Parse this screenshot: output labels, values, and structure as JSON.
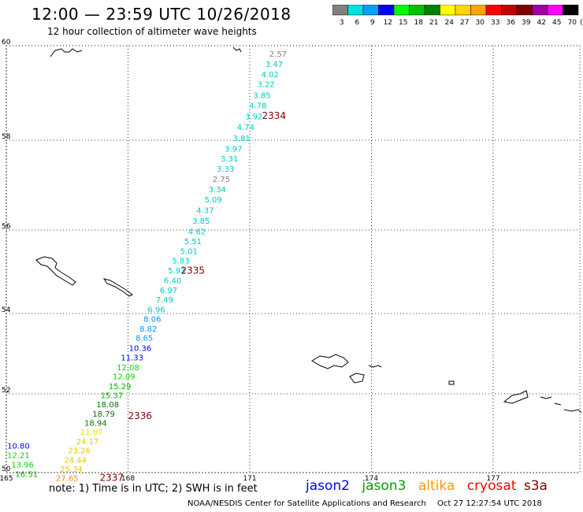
{
  "header": {
    "title": "12:00 — 23:59 UTC 10/26/2018",
    "subtitle": "12 hour collection of altimeter wave heights"
  },
  "color_scale": {
    "unit": "(ft)",
    "bins": [
      {
        "label": "3",
        "color": "#808080"
      },
      {
        "label": "6",
        "color": "#00e0e0"
      },
      {
        "label": "9",
        "color": "#00a0ff"
      },
      {
        "label": "12",
        "color": "#0000ff"
      },
      {
        "label": "15",
        "color": "#00ff00"
      },
      {
        "label": "18",
        "color": "#00c000"
      },
      {
        "label": "21",
        "color": "#008000"
      },
      {
        "label": "24",
        "color": "#ffff00"
      },
      {
        "label": "27",
        "color": "#ffd700"
      },
      {
        "label": "30",
        "color": "#ffa500"
      },
      {
        "label": "33",
        "color": "#ff0000"
      },
      {
        "label": "36",
        "color": "#c00000"
      },
      {
        "label": "39",
        "color": "#800000"
      },
      {
        "label": "42",
        "color": "#a000a0"
      },
      {
        "label": "45",
        "color": "#ff00ff"
      },
      {
        "label": "70",
        "color": "#000000"
      }
    ]
  },
  "map": {
    "lon_range": [
      165,
      179.7
    ],
    "lat_range": [
      50,
      60
    ],
    "lon_ticks": [
      165,
      168,
      171,
      174,
      177
    ],
    "lat_ticks": [
      60,
      58,
      56,
      54,
      52,
      50
    ],
    "track": [
      {
        "lon": 171.7,
        "lat": 59.83,
        "swh": "2.57",
        "color": "#808080"
      },
      {
        "lon": 171.6,
        "lat": 59.62,
        "swh": "3.47",
        "color": "#00c8c8"
      },
      {
        "lon": 171.5,
        "lat": 59.4,
        "swh": "4.02",
        "color": "#00c8c8"
      },
      {
        "lon": 171.4,
        "lat": 59.19,
        "swh": "3.22",
        "color": "#00c8c8"
      },
      {
        "lon": 171.3,
        "lat": 58.96,
        "swh": "3.85",
        "color": "#00c8c8"
      },
      {
        "lon": 171.2,
        "lat": 58.74,
        "swh": "4.78",
        "color": "#00c8c8"
      },
      {
        "lon": 171.1,
        "lat": 58.51,
        "swh": "3.92",
        "color": "#00c8c8"
      },
      {
        "lon": 170.9,
        "lat": 58.28,
        "swh": "4.74",
        "color": "#00c8c8"
      },
      {
        "lon": 170.8,
        "lat": 58.05,
        "swh": "3.81",
        "color": "#00c8c8"
      },
      {
        "lon": 170.6,
        "lat": 57.82,
        "swh": "3.97",
        "color": "#00c8c8"
      },
      {
        "lon": 170.5,
        "lat": 57.6,
        "swh": "3.31",
        "color": "#00c8c8"
      },
      {
        "lon": 170.4,
        "lat": 57.37,
        "swh": "3.33",
        "color": "#00c8c8"
      },
      {
        "lon": 170.3,
        "lat": 57.14,
        "swh": "2.75",
        "color": "#808080"
      },
      {
        "lon": 170.2,
        "lat": 56.91,
        "swh": "3.34",
        "color": "#00c8c8"
      },
      {
        "lon": 170.1,
        "lat": 56.68,
        "swh": "5.09",
        "color": "#00c8c8"
      },
      {
        "lon": 169.9,
        "lat": 56.45,
        "swh": "4.37",
        "color": "#00c8c8"
      },
      {
        "lon": 169.8,
        "lat": 56.21,
        "swh": "3.85",
        "color": "#00c8c8"
      },
      {
        "lon": 169.7,
        "lat": 55.97,
        "swh": "4.62",
        "color": "#00c8c8"
      },
      {
        "lon": 169.6,
        "lat": 55.74,
        "swh": "5.51",
        "color": "#00c8c8"
      },
      {
        "lon": 169.5,
        "lat": 55.5,
        "swh": "5.01",
        "color": "#00c8c8"
      },
      {
        "lon": 169.3,
        "lat": 55.27,
        "swh": "5.83",
        "color": "#00c8c8"
      },
      {
        "lon": 169.2,
        "lat": 55.04,
        "swh": "5.93",
        "color": "#00c8c8"
      },
      {
        "lon": 169.1,
        "lat": 54.8,
        "swh": "6.40",
        "color": "#00c8c8"
      },
      {
        "lon": 169.0,
        "lat": 54.57,
        "swh": "6.97",
        "color": "#00c8c8"
      },
      {
        "lon": 168.9,
        "lat": 54.34,
        "swh": "7.49",
        "color": "#00c8c8"
      },
      {
        "lon": 168.7,
        "lat": 54.1,
        "swh": "6.96",
        "color": "#00c8c8"
      },
      {
        "lon": 168.6,
        "lat": 53.87,
        "swh": "8.06",
        "color": "#0096ff"
      },
      {
        "lon": 168.5,
        "lat": 53.63,
        "swh": "8.82",
        "color": "#0096ff"
      },
      {
        "lon": 168.4,
        "lat": 53.4,
        "swh": "8.65",
        "color": "#0096ff"
      },
      {
        "lon": 168.3,
        "lat": 53.15,
        "swh": "10.36",
        "color": "#0000ff"
      },
      {
        "lon": 168.1,
        "lat": 52.91,
        "swh": "11.33",
        "color": "#0000ff"
      },
      {
        "lon": 168.0,
        "lat": 52.67,
        "swh": "12.08",
        "color": "#00dc00"
      },
      {
        "lon": 167.9,
        "lat": 52.44,
        "swh": "12.09",
        "color": "#00dc00"
      },
      {
        "lon": 167.8,
        "lat": 52.2,
        "swh": "15.29",
        "color": "#00b400"
      },
      {
        "lon": 167.6,
        "lat": 51.97,
        "swh": "15.37",
        "color": "#00b400"
      },
      {
        "lon": 167.5,
        "lat": 51.74,
        "swh": "18.08",
        "color": "#007800"
      },
      {
        "lon": 167.4,
        "lat": 51.5,
        "swh": "18.79",
        "color": "#007800"
      },
      {
        "lon": 167.2,
        "lat": 51.27,
        "swh": "18.94",
        "color": "#007800"
      },
      {
        "lon": 167.1,
        "lat": 51.04,
        "swh": "21.87",
        "color": "#e6e600"
      },
      {
        "lon": 167.0,
        "lat": 50.8,
        "swh": "24.17",
        "color": "#e6c800"
      },
      {
        "lon": 166.8,
        "lat": 50.57,
        "swh": "23.26",
        "color": "#e6c800"
      },
      {
        "lon": 166.7,
        "lat": 50.33,
        "swh": "24.44",
        "color": "#e6c800"
      },
      {
        "lon": 166.6,
        "lat": 50.1,
        "swh": "25.34",
        "color": "#e6c800"
      },
      {
        "lon": 166.5,
        "lat": 49.87,
        "swh": "27.65",
        "color": "#ff8c00"
      },
      {
        "lon": 165.3,
        "lat": 50.69,
        "swh": "10.80",
        "color": "#0000ff"
      },
      {
        "lon": 165.3,
        "lat": 50.45,
        "swh": "12.21",
        "color": "#00dc00"
      },
      {
        "lon": 165.4,
        "lat": 50.21,
        "swh": "13.96",
        "color": "#00dc00"
      },
      {
        "lon": 165.5,
        "lat": 49.97,
        "swh": "16.51",
        "color": "#00b400"
      }
    ],
    "pass_labels": [
      {
        "lon": 171.3,
        "lat": 58.52,
        "text": "2334"
      },
      {
        "lon": 169.3,
        "lat": 55.03,
        "text": "2335"
      },
      {
        "lon": 168.0,
        "lat": 51.44,
        "text": "2336"
      },
      {
        "lon": 167.3,
        "lat": 49.87,
        "text": "2337"
      }
    ]
  },
  "footer": {
    "note": "note:  1) Time is in UTC;  2) SWH is in feet",
    "credit": "NOAA/NESDIS Center for Satellite Applications and Research",
    "timestamp": "Oct 27  12:27:54 UTC 2018"
  },
  "legend": {
    "items": [
      {
        "label": "jason2",
        "color": "#0000ff"
      },
      {
        "label": "jason3",
        "color": "#00a000"
      },
      {
        "label": "altika",
        "color": "#ff9900"
      },
      {
        "label": "cryosat",
        "color": "#ff0000"
      },
      {
        "label": "s3a",
        "color": "#800000"
      }
    ]
  }
}
